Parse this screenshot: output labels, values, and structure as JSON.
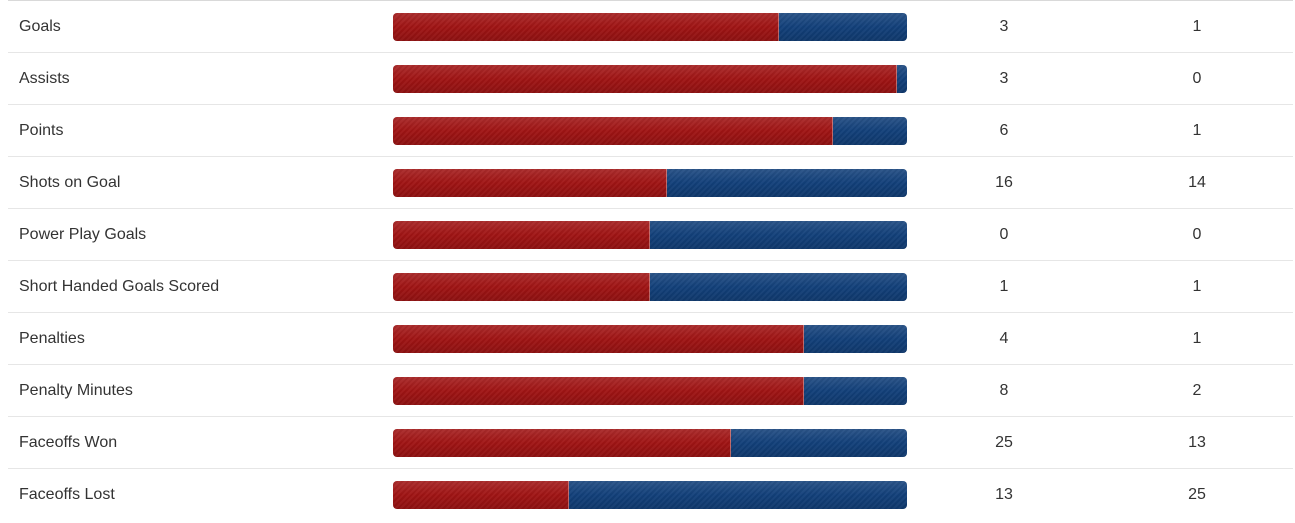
{
  "colors": {
    "home_bar": "#a01414",
    "away_bar": "#12407a"
  },
  "stats": [
    {
      "label": "Goals",
      "home": "3",
      "away": "1",
      "home_fraction": 0.75
    },
    {
      "label": "Assists",
      "home": "3",
      "away": "0",
      "home_fraction": 0.98
    },
    {
      "label": "Points",
      "home": "6",
      "away": "1",
      "home_fraction": 0.857
    },
    {
      "label": "Shots on Goal",
      "home": "16",
      "away": "14",
      "home_fraction": 0.533
    },
    {
      "label": "Power Play Goals",
      "home": "0",
      "away": "0",
      "home_fraction": 0.5
    },
    {
      "label": "Short Handed Goals Scored",
      "home": "1",
      "away": "1",
      "home_fraction": 0.5
    },
    {
      "label": "Penalties",
      "home": "4",
      "away": "1",
      "home_fraction": 0.8
    },
    {
      "label": "Penalty Minutes",
      "home": "8",
      "away": "2",
      "home_fraction": 0.8
    },
    {
      "label": "Faceoffs Won",
      "home": "25",
      "away": "13",
      "home_fraction": 0.658
    },
    {
      "label": "Faceoffs Lost",
      "home": "13",
      "away": "25",
      "home_fraction": 0.342
    }
  ]
}
